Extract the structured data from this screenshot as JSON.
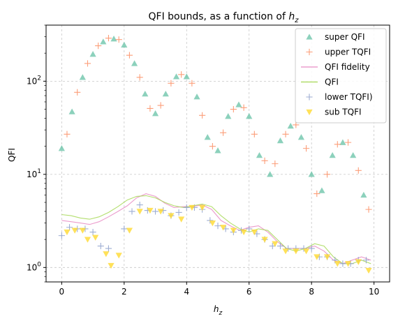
{
  "chart_data": {
    "type": "scatter",
    "title_text": "QFI bounds, as a function of ",
    "title_var": "h",
    "title_sub": "z",
    "xlabel_var": "h",
    "xlabel_sub": "z",
    "ylabel": "QFI",
    "xlim": [
      -0.5,
      10.5
    ],
    "ylim": [
      0.7,
      400
    ],
    "yscale": "log",
    "grid": true,
    "legend_position": "top-right",
    "x_ticks": [
      0,
      2,
      4,
      6,
      8,
      10
    ],
    "x_tick_labels": [
      "0",
      "2",
      "4",
      "6",
      "8",
      "10"
    ],
    "y_ticks": [
      1,
      10,
      100
    ],
    "y_tick_base": "10",
    "y_tick_exps": [
      "0",
      "1",
      "2"
    ],
    "series": [
      {
        "name": "super QFI",
        "kind": "scatter",
        "marker": "triangle-up",
        "color": "#66c2a5",
        "x": [
          0.0,
          0.33,
          0.67,
          1.0,
          1.33,
          1.67,
          2.0,
          2.33,
          2.67,
          3.0,
          3.33,
          3.67,
          4.0,
          4.33,
          4.67,
          5.0,
          5.33,
          5.67,
          6.0,
          6.33,
          6.67,
          7.0,
          7.33,
          7.67,
          8.0,
          8.33,
          8.67,
          9.0,
          9.33,
          9.67
        ],
        "y": [
          19,
          47,
          110,
          195,
          265,
          285,
          245,
          155,
          73,
          45,
          73,
          112,
          112,
          68,
          25,
          18,
          42,
          56,
          42,
          16,
          10,
          23,
          33,
          25,
          10,
          6.7,
          16,
          22,
          16,
          6
        ]
      },
      {
        "name": "upper TQFI",
        "kind": "scatter",
        "marker": "plus",
        "color": "#fc8d62",
        "x": [
          0.17,
          0.5,
          0.83,
          1.17,
          1.5,
          1.83,
          2.17,
          2.5,
          2.83,
          3.17,
          3.5,
          3.83,
          4.17,
          4.5,
          4.83,
          5.17,
          5.5,
          5.83,
          6.17,
          6.5,
          6.83,
          7.17,
          7.5,
          7.83,
          8.17,
          8.5,
          8.83,
          9.17,
          9.5,
          9.83
        ],
        "y": [
          27,
          76,
          155,
          240,
          290,
          280,
          190,
          110,
          51,
          55,
          95,
          118,
          95,
          43,
          20,
          28,
          50,
          52,
          27,
          14,
          13,
          27,
          34,
          19,
          6.2,
          10,
          21,
          22,
          11,
          4.2
        ]
      },
      {
        "name": "QFI fidelity",
        "kind": "line",
        "color": "#e78ac3",
        "x": [
          0.0,
          0.3,
          0.6,
          0.9,
          1.2,
          1.5,
          1.8,
          2.1,
          2.4,
          2.7,
          3.0,
          3.3,
          3.6,
          3.9,
          4.2,
          4.5,
          4.8,
          5.1,
          5.4,
          5.7,
          6.0,
          6.3,
          6.6,
          6.9,
          7.2,
          7.5,
          7.8,
          8.1,
          8.4,
          8.7,
          9.0,
          9.3,
          9.6,
          9.9
        ],
        "y": [
          3.2,
          3.1,
          3.0,
          2.9,
          3.1,
          3.5,
          4.0,
          4.6,
          5.6,
          6.2,
          5.8,
          4.9,
          4.4,
          4.5,
          4.5,
          4.7,
          4.2,
          3.2,
          2.8,
          2.5,
          2.7,
          2.8,
          2.4,
          1.9,
          1.6,
          1.6,
          1.6,
          1.7,
          1.5,
          1.2,
          1.1,
          1.2,
          1.3,
          1.2
        ]
      },
      {
        "name": "QFI",
        "kind": "line",
        "color": "#a6d854",
        "x": [
          0.0,
          0.3,
          0.6,
          0.9,
          1.2,
          1.5,
          1.8,
          2.1,
          2.4,
          2.7,
          3.0,
          3.3,
          3.6,
          3.9,
          4.2,
          4.5,
          4.8,
          5.1,
          5.4,
          5.7,
          6.0,
          6.3,
          6.6,
          6.9,
          7.2,
          7.5,
          7.8,
          8.1,
          8.4,
          8.7,
          9.0,
          9.3,
          9.6,
          9.9
        ],
        "y": [
          3.7,
          3.6,
          3.4,
          3.3,
          3.5,
          3.9,
          4.5,
          5.3,
          5.8,
          5.9,
          5.6,
          5.0,
          4.6,
          4.4,
          4.6,
          4.8,
          4.5,
          3.6,
          3.0,
          2.6,
          2.4,
          2.6,
          2.5,
          2.0,
          1.6,
          1.5,
          1.6,
          1.8,
          1.7,
          1.3,
          1.1,
          1.1,
          1.2,
          1.1
        ]
      },
      {
        "name": "lower TQFI)",
        "kind": "scatter",
        "marker": "plus",
        "color": "#8da0cb",
        "x": [
          0.0,
          0.25,
          0.5,
          0.75,
          1.0,
          1.25,
          1.5,
          2.0,
          2.25,
          2.5,
          2.75,
          3.0,
          3.25,
          3.5,
          3.75,
          4.0,
          4.25,
          4.5,
          4.75,
          5.0,
          5.25,
          5.5,
          5.75,
          6.0,
          6.25,
          6.5,
          6.75,
          7.0,
          7.25,
          7.5,
          7.75,
          8.0,
          8.25,
          8.5,
          8.75,
          9.0,
          9.25,
          9.5,
          9.75
        ],
        "y": [
          2.2,
          2.7,
          2.6,
          2.6,
          2.4,
          1.7,
          1.6,
          2.6,
          4.0,
          4.7,
          4.1,
          4.0,
          4.1,
          3.6,
          3.9,
          4.4,
          4.4,
          4.2,
          3.2,
          2.8,
          2.6,
          2.4,
          2.5,
          2.6,
          2.3,
          2.0,
          1.7,
          1.7,
          1.6,
          1.6,
          1.6,
          1.6,
          1.3,
          1.3,
          1.2,
          1.1,
          1.1,
          1.2,
          1.2
        ]
      },
      {
        "name": "sub TQFI",
        "kind": "scatter",
        "marker": "triangle-down",
        "color": "#ffd92f",
        "x": [
          0.17,
          0.42,
          0.67,
          0.83,
          1.08,
          1.42,
          1.58,
          1.83,
          2.17,
          2.5,
          2.83,
          3.17,
          3.5,
          3.83,
          4.17,
          4.5,
          4.83,
          5.17,
          5.5,
          5.83,
          6.17,
          6.5,
          6.83,
          7.17,
          7.5,
          7.83,
          8.17,
          8.5,
          8.83,
          9.17,
          9.5,
          9.83
        ],
        "y": [
          2.4,
          2.5,
          2.5,
          2.0,
          2.1,
          1.4,
          1.05,
          1.35,
          2.5,
          4.0,
          4.1,
          4.0,
          3.6,
          3.3,
          4.4,
          4.4,
          3.0,
          2.7,
          2.5,
          2.4,
          2.4,
          2.0,
          1.8,
          1.5,
          1.5,
          1.5,
          1.3,
          1.3,
          1.1,
          1.1,
          1.15,
          0.93
        ]
      }
    ]
  }
}
